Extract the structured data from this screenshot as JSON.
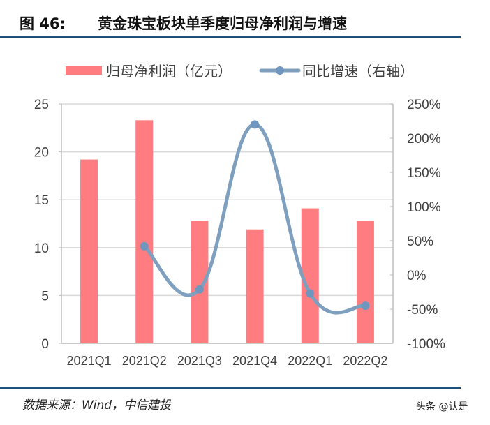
{
  "header": {
    "figure_label": "图 46:",
    "title": "黄金珠宝板块单季度归母净利润与增速"
  },
  "colors": {
    "bar": "#ff7c80",
    "line": "#7f9fbf",
    "marker": "#6f96bf",
    "rule": "#1d4f7a",
    "grid": "#d9d9d9",
    "axis_text": "#404040"
  },
  "chart_data": {
    "type": "bar+line",
    "title": "黄金珠宝板块单季度归母净利润与增速",
    "categories": [
      "2021Q1",
      "2021Q2",
      "2021Q3",
      "2021Q4",
      "2022Q1",
      "2022Q2"
    ],
    "series": [
      {
        "name": "归母净利润（亿元）",
        "type": "bar",
        "axis": "left",
        "values": [
          19.2,
          23.3,
          12.8,
          11.9,
          14.1,
          12.8
        ]
      },
      {
        "name": "同比增速（右轴）",
        "type": "line",
        "axis": "right",
        "values": [
          null,
          42,
          -21,
          220,
          -27,
          -45
        ],
        "unit": "%"
      }
    ],
    "left_axis": {
      "min": 0,
      "max": 25,
      "ticks": [
        "0",
        "5",
        "10",
        "15",
        "20",
        "25"
      ]
    },
    "right_axis": {
      "min": -100,
      "max": 250,
      "ticks": [
        "-100%",
        "-50%",
        "0%",
        "50%",
        "100%",
        "150%",
        "200%",
        "250%"
      ]
    },
    "legend": {
      "position": "top",
      "entries": [
        "归母净利润（亿元）",
        "同比增速（右轴）"
      ]
    },
    "grid": true,
    "xlabel": "",
    "ylabel": ""
  },
  "footer": {
    "source": "数据来源：Wind，中信建投",
    "watermark": "头条 @认是"
  }
}
